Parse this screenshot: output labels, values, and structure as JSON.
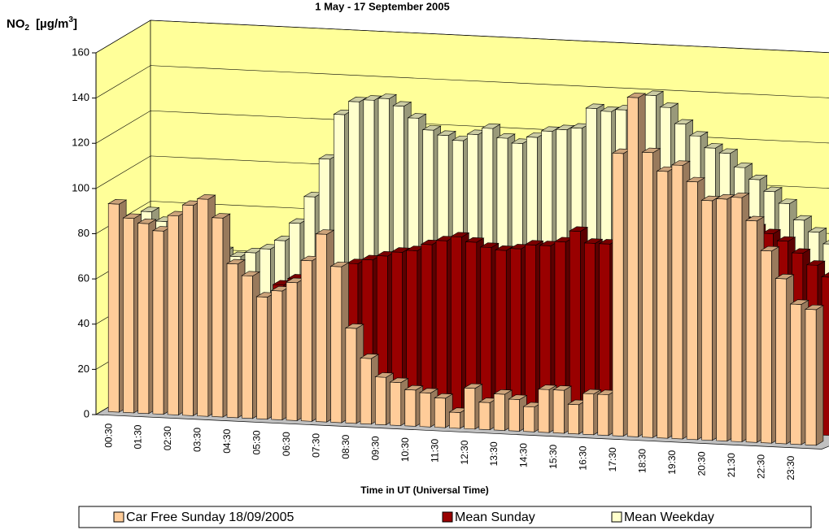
{
  "chart_data": {
    "type": "bar3d",
    "title": "1 May - 17 September 2005",
    "y_label": [
      "NO",
      "2",
      "[µg/m",
      "3",
      "]"
    ],
    "x_label": "Time in UT (Universal Time)",
    "categories": [
      "00:30",
      null,
      "01:30",
      null,
      "02:30",
      null,
      "03:30",
      null,
      "04:30",
      null,
      "05:30",
      null,
      "06:30",
      null,
      "07:30",
      null,
      "08:30",
      null,
      "09:30",
      null,
      "10:30",
      null,
      "11:30",
      null,
      "12:30",
      null,
      "13:30",
      null,
      "14:30",
      null,
      "15:30",
      null,
      "16:30",
      null,
      "17:30",
      null,
      "18:30",
      null,
      "19:30",
      null,
      "20:30",
      null,
      "21:30",
      null,
      "22:30",
      null,
      "23:30",
      null
    ],
    "series": [
      {
        "name": "Car Free Sunday 18/09/2005",
        "color": "#ffcc99",
        "values": [
          92,
          86,
          84,
          81,
          88,
          93,
          96,
          88,
          68,
          63,
          54,
          57,
          61,
          71,
          83,
          69,
          42,
          29,
          21,
          19,
          16,
          15,
          13,
          7,
          18,
          12,
          16,
          14,
          11,
          19,
          19,
          13,
          18,
          18,
          125,
          150,
          126,
          118,
          121,
          114,
          106,
          107,
          108,
          98,
          85,
          73,
          62,
          60
        ]
      },
      {
        "name": "Mean Sunday",
        "color": "#990000",
        "values": [
          60,
          55,
          52,
          50,
          48,
          46,
          44,
          42,
          45,
          48,
          55,
          58,
          60,
          62,
          64,
          66,
          68,
          70,
          72,
          73,
          76,
          78,
          80,
          78,
          76,
          75,
          76,
          78,
          78,
          80,
          85,
          80,
          80,
          84,
          90,
          92,
          93,
          95,
          96,
          97,
          95,
          93,
          90,
          88,
          85,
          80,
          75,
          70
        ]
      },
      {
        "name": "Mean Weekday",
        "color": "#ffffcc",
        "values": [
          80,
          76,
          72,
          68,
          66,
          64,
          62,
          64,
          66,
          70,
          78,
          90,
          107,
          127,
          133,
          134,
          135,
          132,
          127,
          122,
          120,
          118,
          121,
          124,
          120,
          118,
          121,
          124,
          125,
          126,
          135,
          134,
          135,
          138,
          142,
          137,
          130,
          125,
          120,
          118,
          112,
          107,
          102,
          97,
          90,
          85,
          80,
          75
        ]
      }
    ],
    "ylim": [
      0,
      160
    ],
    "yticks": [
      0,
      20,
      40,
      60,
      80,
      100,
      120,
      140,
      160
    ],
    "grid": true,
    "wall_color": "#ffff99",
    "legend": "bottom"
  }
}
